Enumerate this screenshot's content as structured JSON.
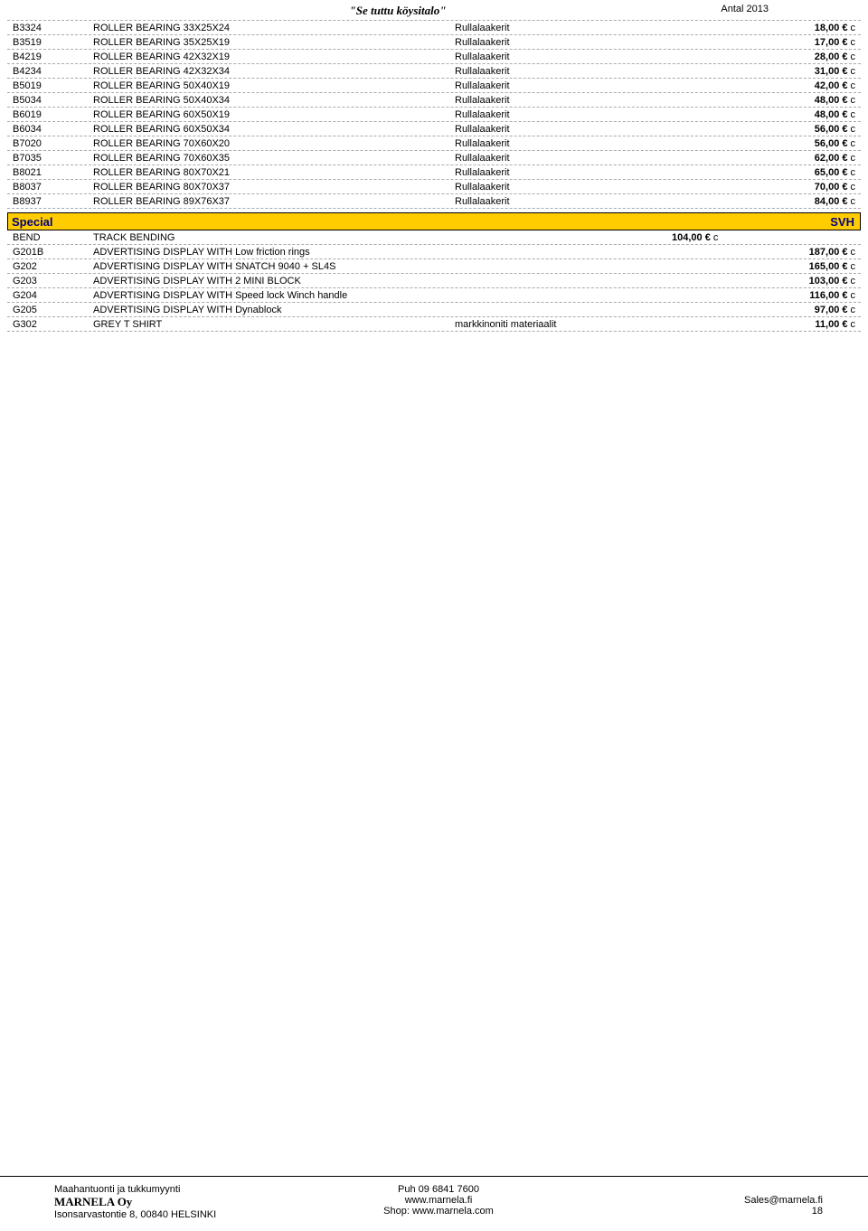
{
  "header": {
    "center": "\"Se tuttu köysitalo\"",
    "right": "Antal  2013"
  },
  "bearings": {
    "category": "Rullalaakerit",
    "currency": "€",
    "unit": "c",
    "rows": [
      {
        "code": "B3324",
        "desc": "ROLLER BEARING 33X25X24",
        "price": "18,00"
      },
      {
        "code": "B3519",
        "desc": "ROLLER BEARING 35X25X19",
        "price": "17,00"
      },
      {
        "code": "B4219",
        "desc": "ROLLER BEARING 42X32X19",
        "price": "28,00"
      },
      {
        "code": "B4234",
        "desc": "ROLLER BEARING 42X32X34",
        "price": "31,00"
      },
      {
        "code": "B5019",
        "desc": "ROLLER BEARING 50X40X19",
        "price": "42,00"
      },
      {
        "code": "B5034",
        "desc": "ROLLER BEARING 50X40X34",
        "price": "48,00"
      },
      {
        "code": "B6019",
        "desc": "ROLLER BEARING 60X50X19",
        "price": "48,00"
      },
      {
        "code": "B6034",
        "desc": "ROLLER BEARING 60X50X34",
        "price": "56,00"
      },
      {
        "code": "B7020",
        "desc": "ROLLER BEARING 70X60X20",
        "price": "56,00"
      },
      {
        "code": "B7035",
        "desc": "ROLLER BEARING 70X60X35",
        "price": "62,00"
      },
      {
        "code": "B8021",
        "desc": "ROLLER BEARING 80X70X21",
        "price": "65,00"
      },
      {
        "code": "B8037",
        "desc": "ROLLER BEARING 80X70X37",
        "price": "70,00"
      },
      {
        "code": "B8937",
        "desc": "ROLLER BEARING 89X76X37",
        "price": "84,00"
      }
    ]
  },
  "special": {
    "title": "Special",
    "right": "SVH",
    "currency": "€",
    "unit": "c",
    "rows": [
      {
        "code": "BEND",
        "desc": "TRACK BENDING",
        "cat": "",
        "price": "104,00",
        "inline": true
      },
      {
        "code": "G201B",
        "desc": "ADVERTISING DISPLAY WITH Low friction rings",
        "cat": "",
        "price": "187,00"
      },
      {
        "code": "G202",
        "desc": "ADVERTISING DISPLAY WITH SNATCH 9040 + SL4S",
        "cat": "",
        "price": "165,00"
      },
      {
        "code": "G203",
        "desc": "ADVERTISING DISPLAY WITH 2 MINI BLOCK",
        "cat": "",
        "price": "103,00"
      },
      {
        "code": "G204",
        "desc": "ADVERTISING DISPLAY WITH Speed lock Winch handle",
        "cat": "",
        "price": "116,00"
      },
      {
        "code": "G205",
        "desc": "ADVERTISING DISPLAY WITH Dynablock",
        "cat": "",
        "price": "97,00"
      },
      {
        "code": "G302",
        "desc": "GREY T SHIRT",
        "cat": "markkinoniti materiaalit",
        "price": "11,00"
      }
    ]
  },
  "footer": {
    "left1": "Maahantuonti ja tukkumyynti",
    "brand": "MARNELA Oy",
    "left3": "Isonsarvastontie 8, 00840 HELSINKI",
    "center1": "Puh 09 6841 7600",
    "center2": "www.marnela.fi",
    "center3": "Shop: www.marnela.com",
    "right1": "Sales@marnela.fi",
    "right2": "18"
  },
  "colors": {
    "section_bg": "#ffcc00",
    "section_fg": "#000080",
    "divider": "#aaaaaa",
    "background": "#ffffff"
  }
}
